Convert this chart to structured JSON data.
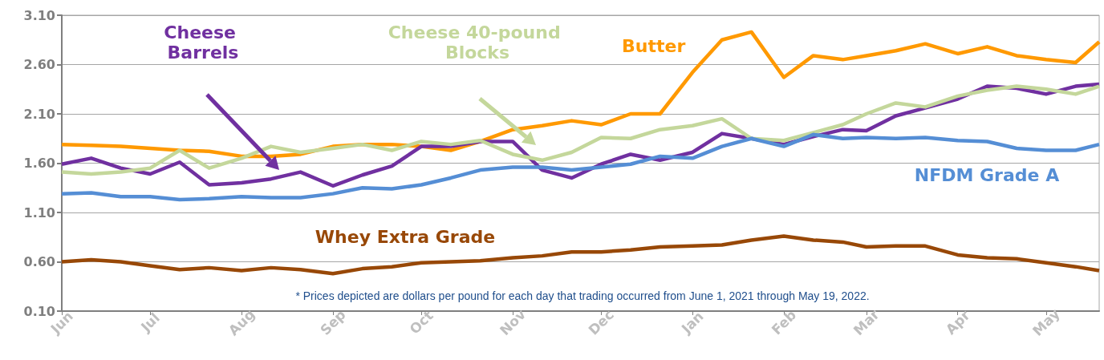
{
  "chart_data": {
    "type": "line",
    "x": [
      "2021-06-01",
      "2021-06-11",
      "2021-06-21",
      "2021-07-01",
      "2021-07-11",
      "2021-07-21",
      "2021-08-01",
      "2021-08-11",
      "2021-08-21",
      "2021-09-01",
      "2021-09-11",
      "2021-09-21",
      "2021-10-01",
      "2021-10-11",
      "2021-10-21",
      "2021-11-01",
      "2021-11-11",
      "2021-11-21",
      "2021-12-01",
      "2021-12-11",
      "2021-12-21",
      "2022-01-01",
      "2022-01-11",
      "2022-01-21",
      "2022-02-01",
      "2022-02-11",
      "2022-02-21",
      "2022-03-01",
      "2022-03-11",
      "2022-03-21",
      "2022-04-01",
      "2022-04-11",
      "2022-04-21",
      "2022-05-01",
      "2022-05-11",
      "2022-05-19"
    ],
    "series": [
      {
        "name": "Butter",
        "color": "#ff9900",
        "values": [
          1.79,
          1.78,
          1.77,
          1.75,
          1.73,
          1.72,
          1.67,
          1.67,
          1.69,
          1.77,
          1.79,
          1.79,
          1.77,
          1.73,
          1.82,
          1.94,
          1.98,
          2.03,
          1.99,
          2.1,
          2.1,
          2.52,
          2.85,
          2.93,
          2.47,
          2.69,
          2.65,
          2.69,
          2.74,
          2.81,
          2.71,
          2.78,
          2.69,
          2.65,
          2.62,
          2.83
        ]
      },
      {
        "name": "Cheese Barrels",
        "color": "#7030a0",
        "values": [
          1.59,
          1.65,
          1.55,
          1.49,
          1.61,
          1.38,
          1.4,
          1.44,
          1.51,
          1.37,
          1.48,
          1.57,
          1.77,
          1.77,
          1.82,
          1.82,
          1.53,
          1.45,
          1.59,
          1.69,
          1.63,
          1.71,
          1.9,
          1.85,
          1.79,
          1.87,
          1.94,
          1.93,
          2.08,
          2.16,
          2.25,
          2.38,
          2.36,
          2.3,
          2.38,
          2.4
        ]
      },
      {
        "name": "Cheese 40-pound Blocks",
        "color": "#c4d79b",
        "values": [
          1.51,
          1.49,
          1.51,
          1.55,
          1.73,
          1.55,
          1.65,
          1.77,
          1.71,
          1.75,
          1.79,
          1.73,
          1.82,
          1.79,
          1.83,
          1.69,
          1.63,
          1.71,
          1.86,
          1.85,
          1.94,
          1.98,
          2.05,
          1.85,
          1.83,
          1.91,
          1.99,
          2.1,
          2.21,
          2.17,
          2.28,
          2.34,
          2.38,
          2.35,
          2.3,
          2.38
        ]
      },
      {
        "name": "NFDM Grade A",
        "color": "#558ed5",
        "values": [
          1.29,
          1.3,
          1.26,
          1.26,
          1.23,
          1.24,
          1.26,
          1.25,
          1.25,
          1.29,
          1.35,
          1.34,
          1.38,
          1.45,
          1.53,
          1.56,
          1.56,
          1.53,
          1.56,
          1.59,
          1.67,
          1.65,
          1.77,
          1.85,
          1.77,
          1.89,
          1.85,
          1.86,
          1.85,
          1.86,
          1.83,
          1.82,
          1.75,
          1.73,
          1.73,
          1.79
        ]
      },
      {
        "name": "Whey Extra Grade",
        "color": "#984807",
        "values": [
          0.6,
          0.62,
          0.6,
          0.56,
          0.52,
          0.54,
          0.51,
          0.54,
          0.52,
          0.48,
          0.53,
          0.55,
          0.59,
          0.6,
          0.61,
          0.64,
          0.66,
          0.7,
          0.7,
          0.72,
          0.75,
          0.76,
          0.77,
          0.82,
          0.86,
          0.82,
          0.8,
          0.75,
          0.76,
          0.76,
          0.67,
          0.64,
          0.63,
          0.59,
          0.55,
          0.51
        ]
      }
    ],
    "xlim": [
      "2021-06-01",
      "2022-05-19"
    ],
    "xticks": [
      {
        "value": "2021-06-01",
        "label": "Jun"
      },
      {
        "value": "2021-07-01",
        "label": "Jul"
      },
      {
        "value": "2021-08-01",
        "label": "Aug"
      },
      {
        "value": "2021-09-01",
        "label": "Sep"
      },
      {
        "value": "2021-10-01",
        "label": "Oct"
      },
      {
        "value": "2021-11-01",
        "label": "Nov"
      },
      {
        "value": "2021-12-01",
        "label": "Dec"
      },
      {
        "value": "2022-01-01",
        "label": "Jan"
      },
      {
        "value": "2022-02-01",
        "label": "Feb"
      },
      {
        "value": "2022-03-01",
        "label": "Mar"
      },
      {
        "value": "2022-04-01",
        "label": "Apr"
      },
      {
        "value": "2022-05-01",
        "label": "May"
      }
    ],
    "ylim": [
      0.1,
      3.1
    ],
    "yticks": [
      {
        "value": 0.1,
        "label": "0.10"
      },
      {
        "value": 0.6,
        "label": "0.60"
      },
      {
        "value": 1.1,
        "label": "1.10"
      },
      {
        "value": 1.6,
        "label": "1.60"
      },
      {
        "value": 2.1,
        "label": "2.10"
      },
      {
        "value": 2.6,
        "label": "2.60"
      },
      {
        "value": 3.1,
        "label": "3.10"
      }
    ],
    "grid": "y",
    "legend": false,
    "marker": "none",
    "line_style": "solid",
    "annotations": [
      "* Prices depicted are dollars per pound for each day that trading occurred from June 1, 2021 through May 19, 2022."
    ]
  }
}
